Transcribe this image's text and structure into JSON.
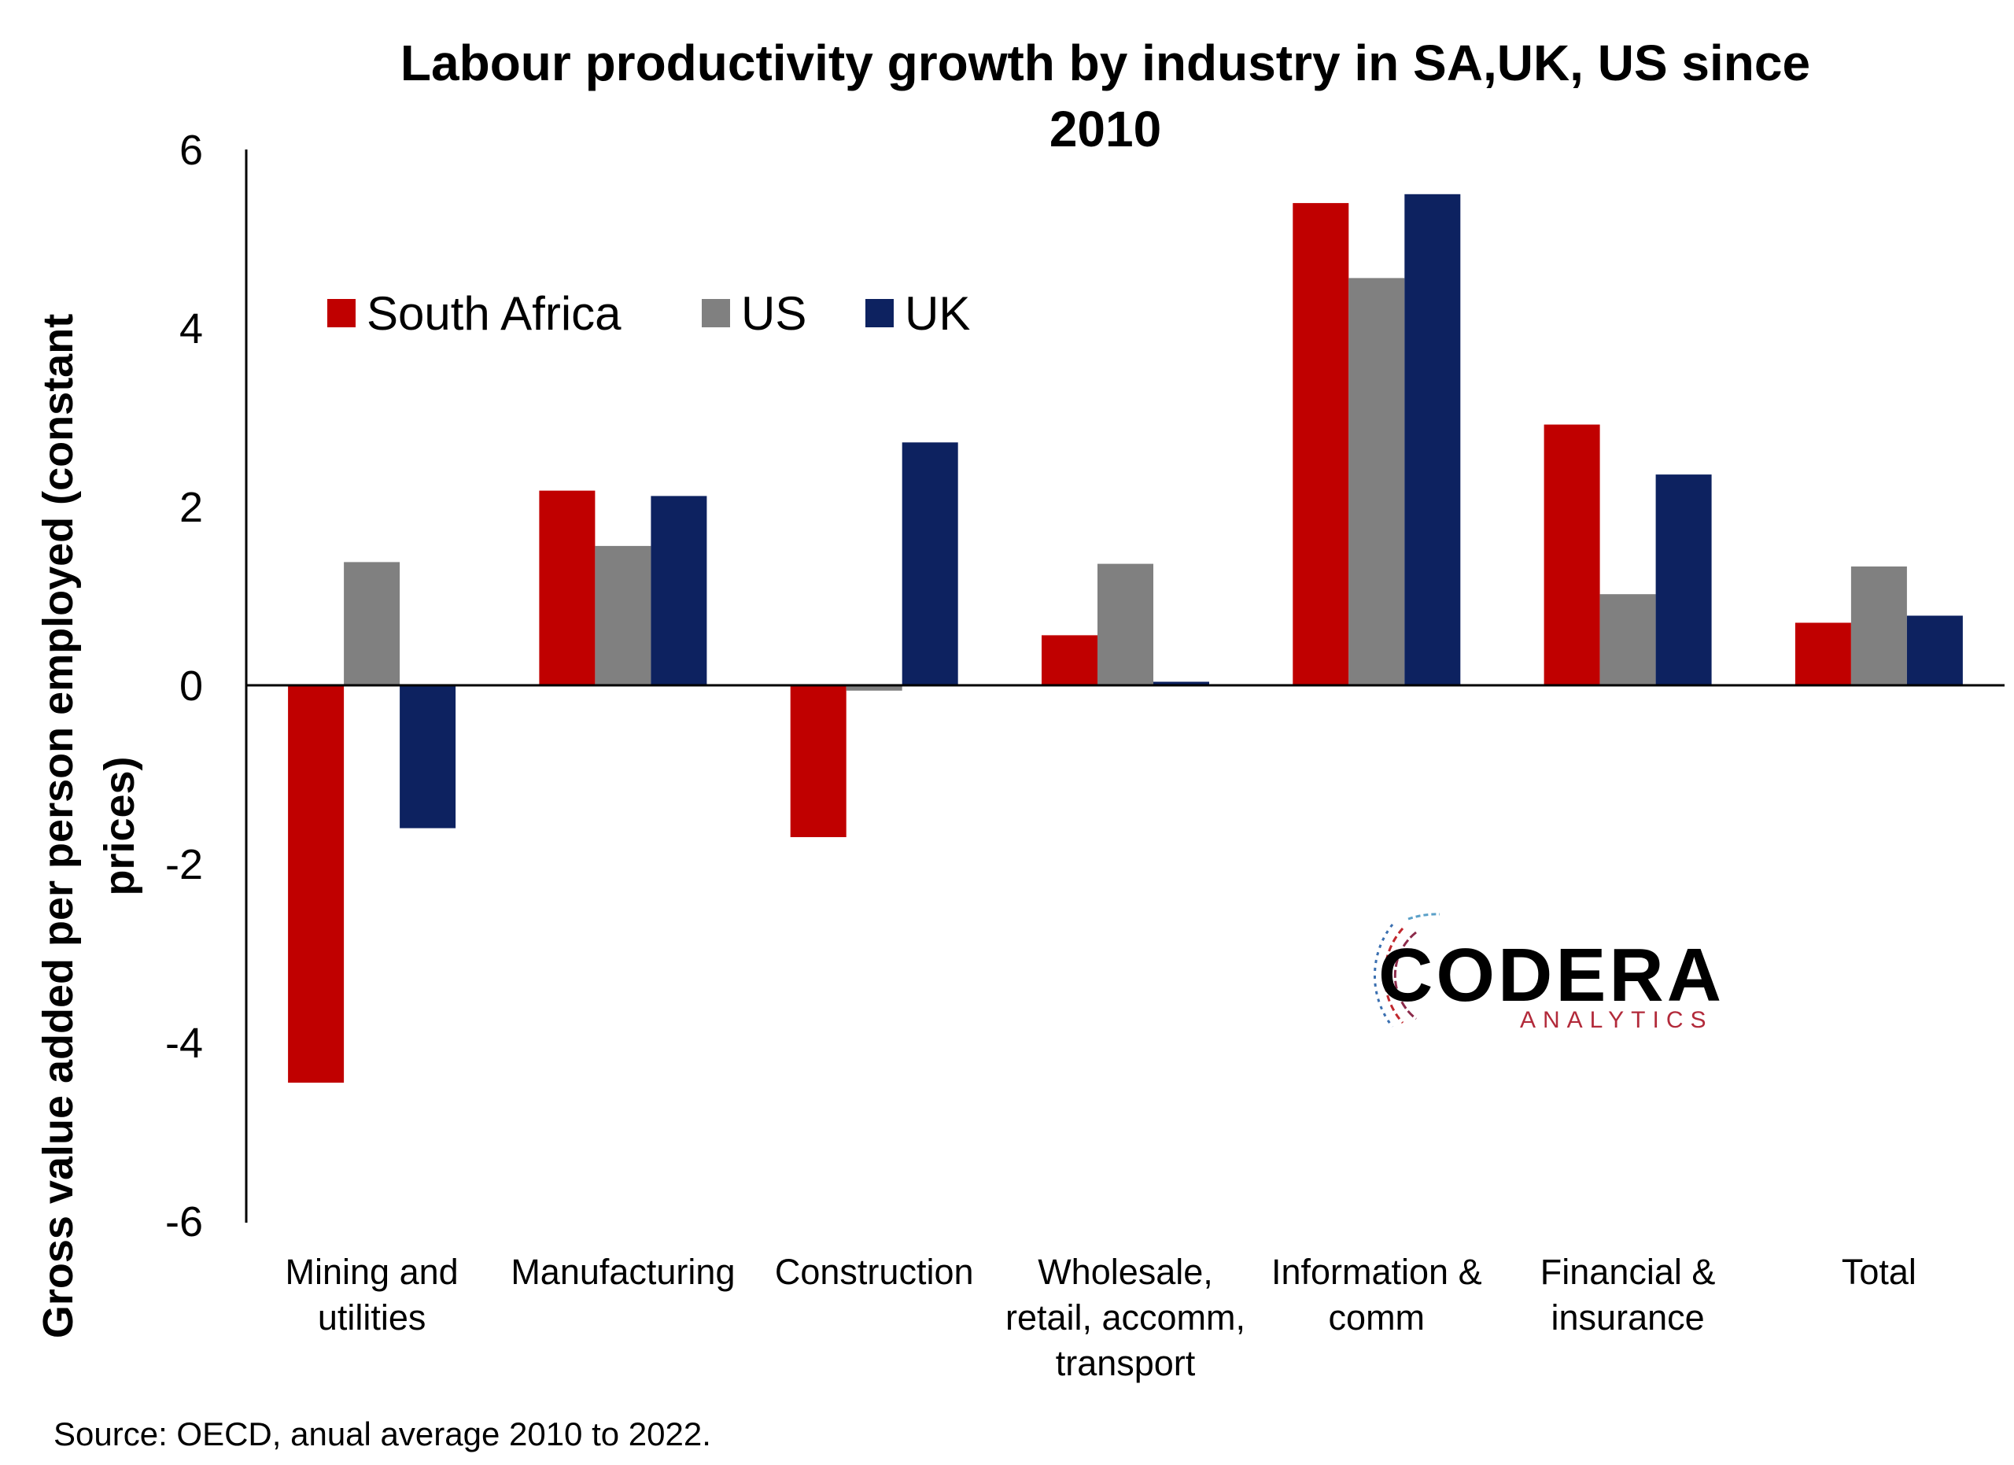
{
  "chart_data": {
    "type": "bar",
    "title_lines": [
      "Labour productivity growth by industry in SA,UK, US since",
      "2010"
    ],
    "ylabel_lines": [
      "Gross value added per person employed  (constant",
      "prices)"
    ],
    "xlabel": "",
    "ylim": [
      -6,
      6
    ],
    "yticks": [
      "6",
      "4",
      "2",
      "0",
      "-2",
      "-4",
      "-6"
    ],
    "categories": [
      [
        "Mining and",
        "utilities"
      ],
      [
        "Manufacturing"
      ],
      [
        "Construction"
      ],
      [
        "Wholesale,",
        "retail, accomm,",
        "transport"
      ],
      [
        "Information &",
        "comm"
      ],
      [
        "Financial &",
        "insurance"
      ],
      [
        "Total"
      ]
    ],
    "series": [
      {
        "name": "South Africa",
        "color": "#c00000",
        "values": [
          -4.45,
          2.18,
          -1.7,
          0.56,
          5.4,
          2.92,
          0.7
        ]
      },
      {
        "name": "US",
        "color": "#808080",
        "values": [
          1.38,
          1.56,
          -0.06,
          1.36,
          4.56,
          1.02,
          1.33
        ]
      },
      {
        "name": "UK",
        "color": "#0d2260",
        "values": [
          -1.6,
          2.12,
          2.72,
          0.04,
          5.5,
          2.36,
          0.78
        ]
      }
    ],
    "legend": "top-left",
    "grid": false
  },
  "source": "Source: OECD, anual average 2010 to 2022.",
  "logo": {
    "name": "CODERA",
    "sub": "ANALYTICS"
  }
}
